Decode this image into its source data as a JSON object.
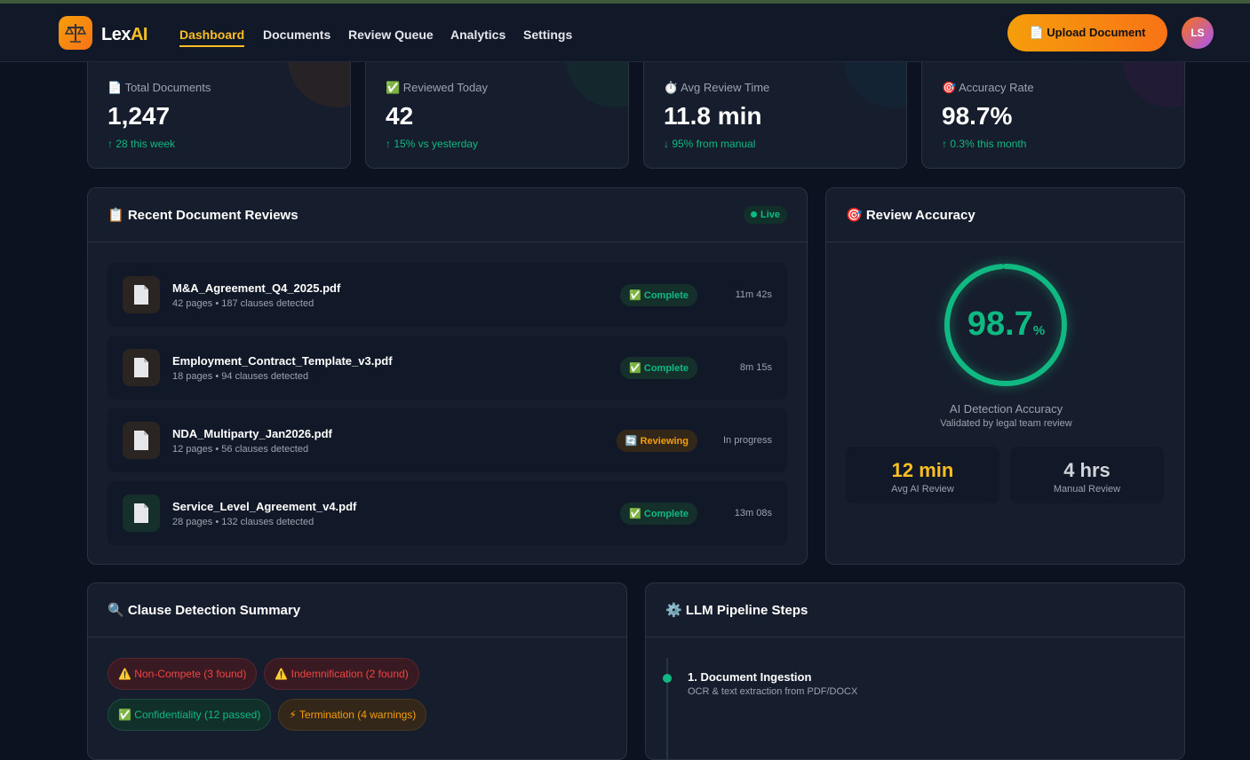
{
  "nav": {
    "brand_a": "Lex",
    "brand_b": "AI",
    "links": [
      "Dashboard",
      "Documents",
      "Review Queue",
      "Analytics",
      "Settings"
    ],
    "upload": "📄 Upload Document",
    "avatar": "LS"
  },
  "stats": [
    {
      "label": "📄 Total Documents",
      "value": "1,247",
      "delta": "↑ 28 this week"
    },
    {
      "label": "✅ Reviewed Today",
      "value": "42",
      "delta": "↑ 15% vs yesterday"
    },
    {
      "label": "⏱️ Avg Review Time",
      "value": "11.8 min",
      "delta": "↓ 95% from manual"
    },
    {
      "label": "🎯 Accuracy Rate",
      "value": "98.7%",
      "delta": "↑ 0.3% this month"
    }
  ],
  "recent": {
    "title": "📋 Recent Document Reviews",
    "live": "Live",
    "items": [
      {
        "name": "M&A_Agreement_Q4_2025.pdf",
        "meta": "42 pages • 187 clauses detected",
        "status": "✅ Complete",
        "time": "11m 42s"
      },
      {
        "name": "Employment_Contract_Template_v3.pdf",
        "meta": "18 pages • 94 clauses detected",
        "status": "✅ Complete",
        "time": "8m 15s"
      },
      {
        "name": "NDA_Multiparty_Jan2026.pdf",
        "meta": "12 pages • 56 clauses detected",
        "status": "🔄 Reviewing",
        "time": "In progress"
      },
      {
        "name": "Service_Level_Agreement_v4.pdf",
        "meta": "28 pages • 132 clauses detected",
        "status": "✅ Complete",
        "time": "13m 08s"
      }
    ]
  },
  "accuracy": {
    "title": "🎯 Review Accuracy",
    "value": 98.7,
    "unit": "%",
    "label": "AI Detection Accuracy",
    "sublabel": "Validated by legal team review",
    "compare": [
      {
        "value": "12 min",
        "label": "Avg AI Review"
      },
      {
        "value": "4 hrs",
        "label": "Manual Review"
      }
    ]
  },
  "clauses": {
    "title": "🔍 Clause Detection Summary",
    "tags": [
      "⚠️ Non-Compete (3 found)",
      "⚠️ Indemnification (2 found)",
      "✅ Confidentiality (12 passed)",
      "⚡ Termination (4 warnings)"
    ]
  },
  "pipeline": {
    "title": "⚙️ LLM Pipeline Steps",
    "steps": [
      {
        "title": "1. Document Ingestion",
        "desc": "OCR & text extraction from PDF/DOCX"
      }
    ]
  }
}
